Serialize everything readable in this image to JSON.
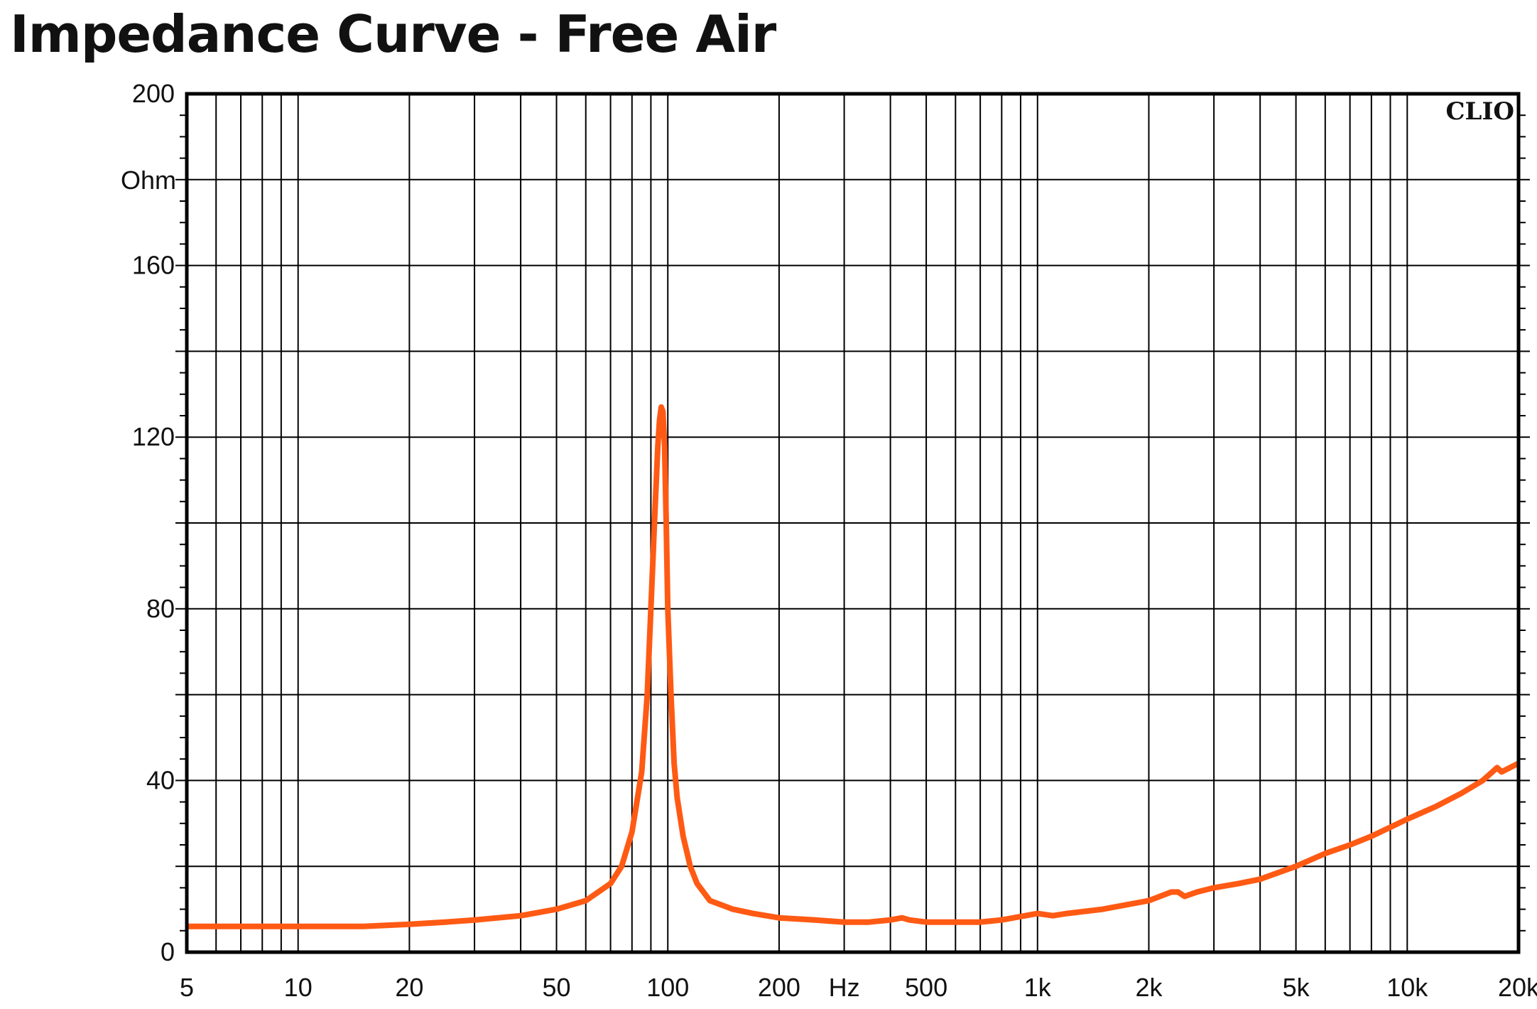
{
  "chart_data": {
    "type": "line",
    "title": "Impedance Curve - Free Air",
    "brand": "CLIO",
    "x_scale": "log",
    "xlim": [
      5,
      20000
    ],
    "ylim": [
      0,
      200
    ],
    "x_unit": "Hz",
    "y_unit": "Ohm",
    "grid": true,
    "x_ticks": [
      {
        "value": 5,
        "label": "5"
      },
      {
        "value": 10,
        "label": "10"
      },
      {
        "value": 20,
        "label": "20"
      },
      {
        "value": 50,
        "label": "50"
      },
      {
        "value": 100,
        "label": "100"
      },
      {
        "value": 200,
        "label": "200"
      },
      {
        "value": 500,
        "label": "500"
      },
      {
        "value": 1000,
        "label": "1k"
      },
      {
        "value": 2000,
        "label": "2k"
      },
      {
        "value": 5000,
        "label": "5k"
      },
      {
        "value": 10000,
        "label": "10k"
      },
      {
        "value": 20000,
        "label": "20k"
      }
    ],
    "y_ticks": [
      {
        "value": 0,
        "label": "0"
      },
      {
        "value": 40,
        "label": "40"
      },
      {
        "value": 80,
        "label": "80"
      },
      {
        "value": 120,
        "label": "120"
      },
      {
        "value": 160,
        "label": "160"
      },
      {
        "value": 200,
        "label": "200"
      }
    ],
    "series": [
      {
        "color": "#ff5a14",
        "x": [
          5,
          8,
          10,
          15,
          20,
          25,
          30,
          40,
          50,
          60,
          70,
          75,
          80,
          85,
          88,
          90,
          92,
          94,
          95,
          96,
          97,
          98,
          99,
          100,
          102,
          104,
          106,
          110,
          115,
          120,
          130,
          150,
          170,
          200,
          250,
          300,
          350,
          400,
          430,
          450,
          500,
          600,
          700,
          800,
          1000,
          1100,
          1200,
          1500,
          2000,
          2300,
          2400,
          2500,
          2700,
          3000,
          3500,
          4000,
          5000,
          6000,
          7000,
          8000,
          10000,
          12000,
          14000,
          16000,
          17000,
          17500,
          18000,
          20000,
          22000
        ],
        "y": [
          6,
          6,
          6,
          6,
          6.5,
          7,
          7.5,
          8.5,
          10,
          12,
          16,
          20,
          28,
          42,
          60,
          80,
          100,
          118,
          124,
          127,
          126,
          118,
          100,
          80,
          60,
          44,
          36,
          27,
          20,
          16,
          12,
          10,
          9,
          8,
          7.5,
          7,
          7,
          7.5,
          8,
          7.5,
          7,
          7,
          7,
          7.5,
          9,
          8.5,
          9,
          10,
          12,
          14,
          14,
          13,
          14,
          15,
          16,
          17,
          20,
          23,
          25,
          27,
          31,
          34,
          37,
          40,
          42,
          43,
          42,
          44,
          48
        ]
      }
    ]
  }
}
